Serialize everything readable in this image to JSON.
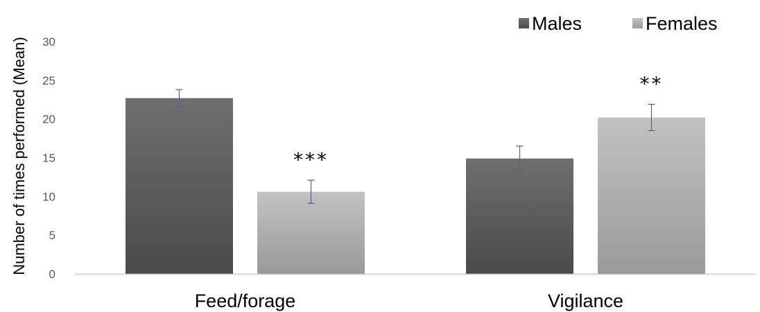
{
  "chart_data": {
    "type": "bar",
    "title": "",
    "xlabel": "",
    "ylabel": "Number of times performed (Mean)",
    "ylim": [
      0,
      30
    ],
    "yticks": [
      0,
      5,
      10,
      15,
      20,
      25,
      30
    ],
    "categories": [
      "Feed/forage",
      "Vigilance"
    ],
    "series": [
      {
        "name": "Males",
        "values": [
          22.7,
          14.9
        ],
        "errors": [
          1.1,
          1.6
        ],
        "color_top": "#6f6f6f",
        "color_bottom": "#4a4a4a"
      },
      {
        "name": "Females",
        "values": [
          10.6,
          20.2
        ],
        "errors": [
          1.5,
          1.7
        ],
        "color_top": "#c2c2c2",
        "color_bottom": "#9a9a9a"
      }
    ],
    "significance": [
      {
        "category": "Feed/forage",
        "series": "Females",
        "label": "***"
      },
      {
        "category": "Vigilance",
        "series": "Females",
        "label": "**"
      }
    ],
    "legend": {
      "position": "top-right"
    },
    "grid": false,
    "colors": {
      "axis_line": "#c5d6b4",
      "error_bar": "#5b5b8a",
      "tick_text": "#595959"
    }
  }
}
